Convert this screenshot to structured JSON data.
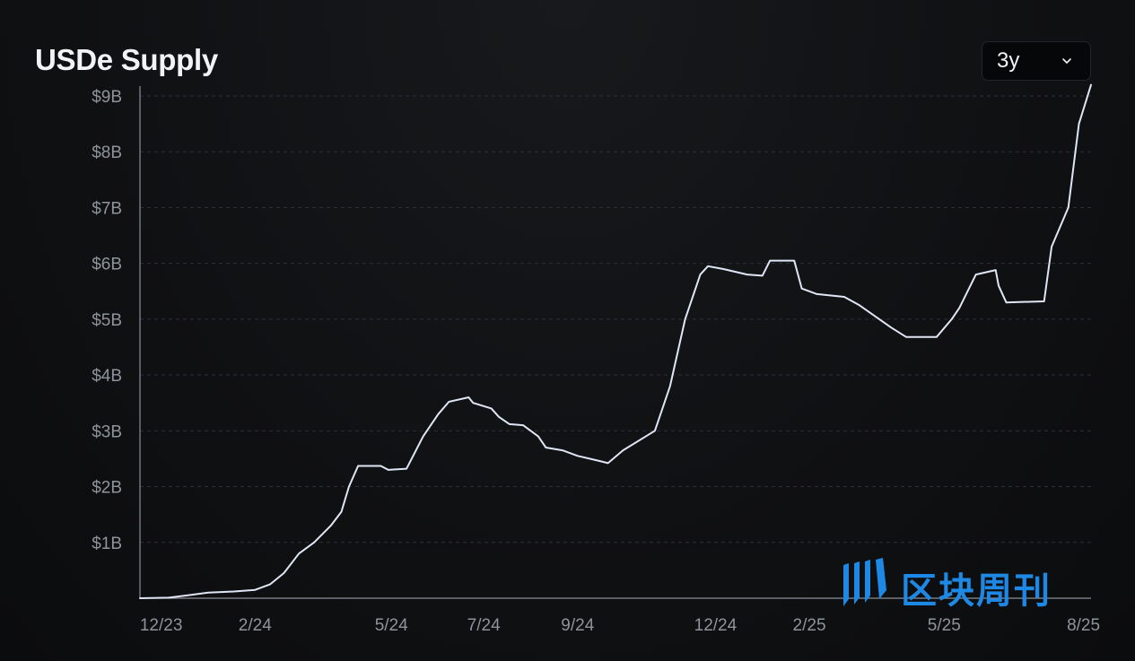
{
  "header": {
    "title": "USDe Supply",
    "range": {
      "selected": "3y",
      "chevron_icon": "chevron-down-icon"
    }
  },
  "watermark": {
    "text": "区块周刊",
    "logo_icon": "blockweekly-logo-icon",
    "color": "#1e88e5"
  },
  "colors": {
    "line": "#dfe6f5",
    "grid": "#2c3036",
    "axis": "#8a9099",
    "tick_text": "#8e949c"
  },
  "chart_data": {
    "type": "line",
    "title": "USDe Supply",
    "xlabel": "",
    "ylabel": "",
    "y_unit": "USD billions",
    "ylim": [
      0,
      9.2
    ],
    "yticks": [
      {
        "value": 1,
        "label": "$1B"
      },
      {
        "value": 2,
        "label": "$2B"
      },
      {
        "value": 3,
        "label": "$3B"
      },
      {
        "value": 4,
        "label": "$4B"
      },
      {
        "value": 5,
        "label": "$5B"
      },
      {
        "value": 6,
        "label": "$6B"
      },
      {
        "value": 7,
        "label": "$7B"
      },
      {
        "value": 8,
        "label": "$8B"
      },
      {
        "value": 9,
        "label": "$9B"
      }
    ],
    "xlim": [
      "2023-12-01",
      "2025-08-20"
    ],
    "xticks": [
      {
        "value": "2023-12-15",
        "label": "12/23"
      },
      {
        "value": "2024-02-15",
        "label": "2/24"
      },
      {
        "value": "2024-05-15",
        "label": "5/24"
      },
      {
        "value": "2024-07-15",
        "label": "7/24"
      },
      {
        "value": "2024-09-15",
        "label": "9/24"
      },
      {
        "value": "2024-12-15",
        "label": "12/24"
      },
      {
        "value": "2025-02-15",
        "label": "2/25"
      },
      {
        "value": "2025-05-15",
        "label": "5/25"
      },
      {
        "value": "2025-08-15",
        "label": "8/25"
      }
    ],
    "grid": "horizontal-dashed",
    "series": [
      {
        "color": "#dfe6f5",
        "points": [
          [
            "2023-12-01",
            0.0
          ],
          [
            "2023-12-20",
            0.01
          ],
          [
            "2024-01-01",
            0.05
          ],
          [
            "2024-01-15",
            0.1
          ],
          [
            "2024-02-01",
            0.12
          ],
          [
            "2024-02-15",
            0.15
          ],
          [
            "2024-02-25",
            0.25
          ],
          [
            "2024-03-05",
            0.45
          ],
          [
            "2024-03-15",
            0.8
          ],
          [
            "2024-03-25",
            1.0
          ],
          [
            "2024-04-05",
            1.3
          ],
          [
            "2024-04-12",
            1.55
          ],
          [
            "2024-04-17",
            2.0
          ],
          [
            "2024-04-23",
            2.37
          ],
          [
            "2024-05-08",
            2.37
          ],
          [
            "2024-05-13",
            2.3
          ],
          [
            "2024-05-25",
            2.32
          ],
          [
            "2024-06-05",
            2.9
          ],
          [
            "2024-06-15",
            3.3
          ],
          [
            "2024-06-22",
            3.52
          ],
          [
            "2024-07-05",
            3.6
          ],
          [
            "2024-07-08",
            3.5
          ],
          [
            "2024-07-20",
            3.4
          ],
          [
            "2024-07-25",
            3.25
          ],
          [
            "2024-08-01",
            3.12
          ],
          [
            "2024-08-10",
            3.1
          ],
          [
            "2024-08-20",
            2.9
          ],
          [
            "2024-08-25",
            2.7
          ],
          [
            "2024-09-05",
            2.65
          ],
          [
            "2024-09-15",
            2.55
          ],
          [
            "2024-10-01",
            2.45
          ],
          [
            "2024-10-05",
            2.42
          ],
          [
            "2024-10-15",
            2.65
          ],
          [
            "2024-11-05",
            3.0
          ],
          [
            "2024-11-15",
            3.8
          ],
          [
            "2024-11-25",
            5.0
          ],
          [
            "2024-12-05",
            5.8
          ],
          [
            "2024-12-10",
            5.95
          ],
          [
            "2024-12-20",
            5.9
          ],
          [
            "2025-01-05",
            5.8
          ],
          [
            "2025-01-15",
            5.78
          ],
          [
            "2025-01-20",
            6.05
          ],
          [
            "2025-02-05",
            6.05
          ],
          [
            "2025-02-10",
            5.55
          ],
          [
            "2025-02-20",
            5.45
          ],
          [
            "2025-03-10",
            5.4
          ],
          [
            "2025-03-20",
            5.25
          ],
          [
            "2025-04-10",
            4.85
          ],
          [
            "2025-04-20",
            4.68
          ],
          [
            "2025-05-10",
            4.68
          ],
          [
            "2025-05-20",
            5.0
          ],
          [
            "2025-05-25",
            5.2
          ],
          [
            "2025-06-05",
            5.8
          ],
          [
            "2025-06-18",
            5.88
          ],
          [
            "2025-06-20",
            5.6
          ],
          [
            "2025-06-25",
            5.3
          ],
          [
            "2025-07-20",
            5.32
          ],
          [
            "2025-07-25",
            6.3
          ],
          [
            "2025-08-05",
            7.0
          ],
          [
            "2025-08-12",
            8.5
          ],
          [
            "2025-08-20",
            9.2
          ]
        ]
      }
    ]
  }
}
